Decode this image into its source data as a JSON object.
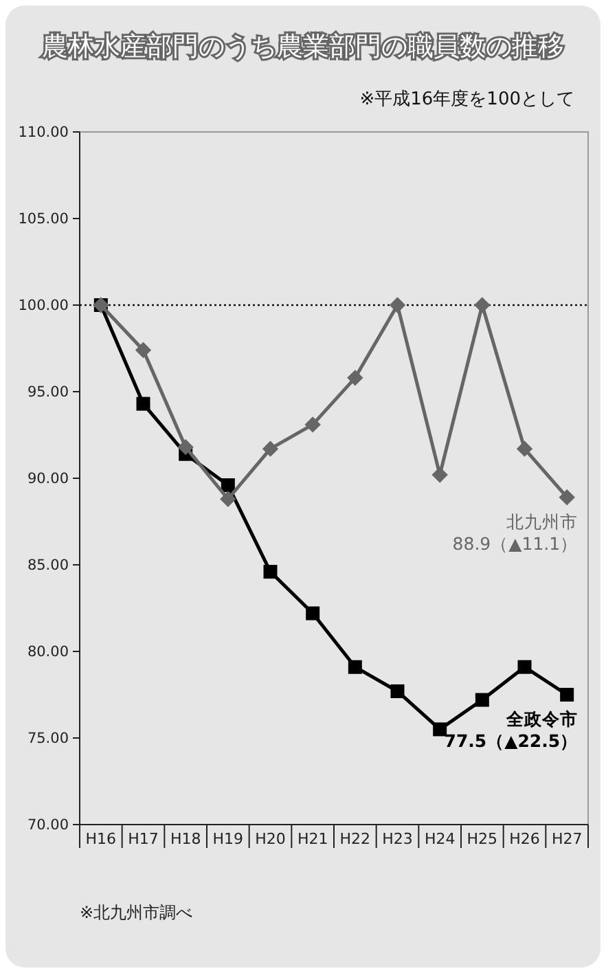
{
  "chart_data": {
    "type": "line",
    "title": "農林水産部門のうち農業部門の職員数の推移",
    "subtitle": "※平成16年度を100として",
    "categories": [
      "H16",
      "H17",
      "H18",
      "H19",
      "H20",
      "H21",
      "H22",
      "H23",
      "H24",
      "H25",
      "H26",
      "H27"
    ],
    "series": [
      {
        "name": "北九州市",
        "color": "#666666",
        "marker": "diamond",
        "values": [
          100,
          97.4,
          91.8,
          88.8,
          91.7,
          93.1,
          95.8,
          100,
          90.2,
          100,
          91.7,
          88.9
        ]
      },
      {
        "name": "全政令市",
        "color": "#000000",
        "marker": "square",
        "values": [
          100,
          94.3,
          91.4,
          89.6,
          84.6,
          82.2,
          79.1,
          77.7,
          75.5,
          77.2,
          79.1,
          77.5
        ]
      }
    ],
    "ylim": [
      70,
      110
    ],
    "yticks": [
      {
        "value": 70,
        "label": "70.00"
      },
      {
        "value": 75,
        "label": "75.00"
      },
      {
        "value": 80,
        "label": "80.00"
      },
      {
        "value": 85,
        "label": "85.00"
      },
      {
        "value": 90,
        "label": "90.00"
      },
      {
        "value": 95,
        "label": "95.00"
      },
      {
        "value": 100,
        "label": "100.00"
      },
      {
        "value": 105,
        "label": "105.00"
      },
      {
        "value": 110,
        "label": "110.00"
      }
    ],
    "ref_lines": [
      {
        "axis": "y",
        "value": 100,
        "line_style": "dotted"
      }
    ],
    "annotations": [
      {
        "text": "88.9（▲11.1）",
        "x": "H27",
        "y": 88.9
      },
      {
        "text": "77.5（▲22.5）",
        "x": "H27",
        "y": 77.5
      },
      "※北九州市調べ"
    ],
    "grid": false,
    "legend": false
  }
}
